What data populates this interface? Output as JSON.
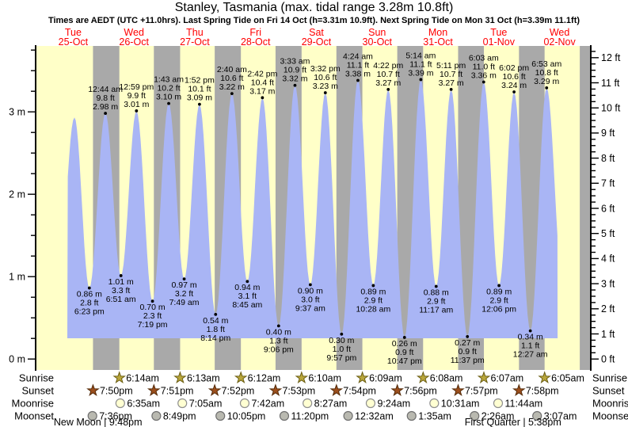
{
  "title": "Stanley, Tasmania (max. tidal range 3.28m 10.8ft)",
  "subtitle": "Times are AEDT (UTC +11.0hrs). Last Spring Tide on Fri 14 Oct (h=3.31m 10.9ft). Next Spring Tide on Mon 31 Oct (h=3.39m 11.1ft)",
  "chart_data": {
    "type": "area",
    "x_axis": {
      "hours_total": 216,
      "days": [
        {
          "dow": "Tue",
          "date": "25-Oct"
        },
        {
          "dow": "Wed",
          "date": "26-Oct"
        },
        {
          "dow": "Thu",
          "date": "27-Oct"
        },
        {
          "dow": "Fri",
          "date": "28-Oct"
        },
        {
          "dow": "Sat",
          "date": "29-Oct"
        },
        {
          "dow": "Sun",
          "date": "30-Oct"
        },
        {
          "dow": "Mon",
          "date": "31-Oct"
        },
        {
          "dow": "Tue",
          "date": "01-Nov"
        },
        {
          "dow": "Wed",
          "date": "02-Nov"
        }
      ]
    },
    "y_axis_left": {
      "unit": "m",
      "major_ticks": [
        0,
        1,
        2,
        3
      ],
      "minor_step": 0.25,
      "minor_max": 3.75
    },
    "y_axis_right": {
      "unit": "ft",
      "major_ticks": [
        0,
        1,
        2,
        3,
        4,
        5,
        6,
        7,
        8,
        9,
        10,
        11,
        12
      ],
      "minor_step": 0.25,
      "minor_max": 12.25
    },
    "extremes": [
      {
        "kind": "low",
        "m": 1.0,
        "t": 6.2,
        "offscreen": true
      },
      {
        "kind": "high",
        "m": 2.93,
        "t": 12.5,
        "unlabeled": true
      },
      {
        "kind": "low",
        "m": 0.86,
        "ft": 2.8,
        "time": "6:23 pm",
        "t": 18.383
      },
      {
        "kind": "high",
        "m": 2.98,
        "ft": 9.8,
        "time": "12:44 am",
        "t": 24.733
      },
      {
        "kind": "low",
        "m": 1.01,
        "ft": 3.3,
        "time": "6:51 am",
        "t": 30.85
      },
      {
        "kind": "high",
        "m": 3.01,
        "ft": 9.9,
        "time": "12:59 pm",
        "t": 36.983
      },
      {
        "kind": "low",
        "m": 0.7,
        "ft": 2.3,
        "time": "7:19 pm",
        "t": 43.317
      },
      {
        "kind": "high",
        "m": 3.1,
        "ft": 10.2,
        "time": "1:43 am",
        "t": 49.717
      },
      {
        "kind": "low",
        "m": 0.97,
        "ft": 3.2,
        "time": "7:49 am",
        "t": 55.817
      },
      {
        "kind": "high",
        "m": 3.09,
        "ft": 10.1,
        "time": "1:52 pm",
        "t": 61.867
      },
      {
        "kind": "low",
        "m": 0.54,
        "ft": 1.8,
        "time": "8:14 pm",
        "t": 68.233
      },
      {
        "kind": "high",
        "m": 3.22,
        "ft": 10.6,
        "time": "2:40 am",
        "t": 74.667
      },
      {
        "kind": "low",
        "m": 0.94,
        "ft": 3.1,
        "time": "8:45 am",
        "t": 80.75
      },
      {
        "kind": "high",
        "m": 3.17,
        "ft": 10.4,
        "time": "2:42 pm",
        "t": 86.7
      },
      {
        "kind": "low",
        "m": 0.4,
        "ft": 1.3,
        "time": "9:06 pm",
        "t": 93.1
      },
      {
        "kind": "high",
        "m": 3.32,
        "ft": 10.9,
        "time": "3:33 am",
        "t": 99.55
      },
      {
        "kind": "low",
        "m": 0.9,
        "ft": 3.0,
        "time": "9:37 am",
        "t": 105.617
      },
      {
        "kind": "high",
        "m": 3.23,
        "ft": 10.6,
        "time": "3:32 pm",
        "t": 111.533
      },
      {
        "kind": "low",
        "m": 0.3,
        "ft": 1.0,
        "time": "9:57 pm",
        "t": 117.95
      },
      {
        "kind": "high",
        "m": 3.38,
        "ft": 11.1,
        "time": "4:24 am",
        "t": 124.4
      },
      {
        "kind": "low",
        "m": 0.89,
        "ft": 2.9,
        "time": "10:28 am",
        "t": 130.467
      },
      {
        "kind": "high",
        "m": 3.27,
        "ft": 10.7,
        "time": "4:22 pm",
        "t": 136.367
      },
      {
        "kind": "low",
        "m": 0.26,
        "ft": 0.9,
        "time": "10:47 pm",
        "t": 142.783
      },
      {
        "kind": "high",
        "m": 3.39,
        "ft": 11.1,
        "time": "5:14 am",
        "t": 149.233
      },
      {
        "kind": "low",
        "m": 0.88,
        "ft": 2.9,
        "time": "11:17 am",
        "t": 155.283
      },
      {
        "kind": "high",
        "m": 3.27,
        "ft": 10.7,
        "time": "5:11 pm",
        "t": 161.183
      },
      {
        "kind": "low",
        "m": 0.27,
        "ft": 0.9,
        "time": "11:37 pm",
        "t": 167.617
      },
      {
        "kind": "high",
        "m": 3.36,
        "ft": 11.0,
        "time": "6:03 am",
        "t": 174.05
      },
      {
        "kind": "low",
        "m": 0.89,
        "ft": 2.9,
        "time": "12:06 pm",
        "t": 180.1
      },
      {
        "kind": "high",
        "m": 3.24,
        "ft": 10.6,
        "time": "6:02 pm",
        "t": 186.033
      },
      {
        "kind": "low",
        "m": 0.34,
        "ft": 1.1,
        "time": "12:27 am",
        "t": 192.45
      },
      {
        "kind": "high",
        "m": 3.29,
        "ft": 10.8,
        "time": "6:53 am",
        "t": 198.883
      },
      {
        "kind": "low",
        "m": 0.9,
        "t": 205.3,
        "offscreen": true
      }
    ],
    "curve_start_h": 9.7,
    "curve_end_h": 203.2,
    "night_bands_h": [
      [
        19.83,
        30.23
      ],
      [
        43.85,
        54.22
      ],
      [
        67.87,
        78.2
      ],
      [
        91.88,
        102.17
      ],
      [
        115.9,
        126.15
      ],
      [
        139.93,
        150.13
      ],
      [
        163.95,
        174.12
      ],
      [
        187.97,
        198.08
      ],
      [
        211.97,
        216
      ]
    ],
    "colors": {
      "day": "#ffffc8",
      "night": "#a9a9a9",
      "water": "#a9b5f5",
      "day_label": "#ff0000",
      "text": "#000000",
      "sunrise_star": "#b9a63b",
      "sunrise_star_edge": "#6b5e14",
      "sunset_star": "#9c4f1d",
      "sunset_star_edge": "#542a08",
      "moonrise_fill": "#ffffd2",
      "moonrise_edge": "#8f8f8f",
      "moonset_fill": "#b9b9b0",
      "moonset_edge": "#6f6f6f"
    }
  },
  "astronomy": {
    "sunrise_label": "Sunrise",
    "sunset_label": "Sunset",
    "moonrise_label": "Moonrise",
    "moonset_label": "Moonset",
    "sunrise": [
      {
        "time": "6:14am",
        "t": 30.233
      },
      {
        "time": "6:13am",
        "t": 54.217
      },
      {
        "time": "6:12am",
        "t": 78.2
      },
      {
        "time": "6:10am",
        "t": 102.167
      },
      {
        "time": "6:09am",
        "t": 126.15
      },
      {
        "time": "6:08am",
        "t": 150.133
      },
      {
        "time": "6:07am",
        "t": 174.117
      },
      {
        "time": "6:05am",
        "t": 198.083
      }
    ],
    "sunset": [
      {
        "time": "7:50pm",
        "t": 19.833
      },
      {
        "time": "7:51pm",
        "t": 43.85
      },
      {
        "time": "7:52pm",
        "t": 67.867
      },
      {
        "time": "7:53pm",
        "t": 91.883
      },
      {
        "time": "7:54pm",
        "t": 115.9
      },
      {
        "time": "7:56pm",
        "t": 139.933
      },
      {
        "time": "7:57pm",
        "t": 163.95
      },
      {
        "time": "7:58pm",
        "t": 187.967
      }
    ],
    "moonrise": [
      {
        "time": "6:35am",
        "t": 30.583
      },
      {
        "time": "7:05am",
        "t": 55.083
      },
      {
        "time": "7:42am",
        "t": 79.7
      },
      {
        "time": "8:27am",
        "t": 104.45
      },
      {
        "time": "9:24am",
        "t": 129.4
      },
      {
        "time": "10:31am",
        "t": 154.517
      },
      {
        "time": "11:44am",
        "t": 179.733
      }
    ],
    "moonset": [
      {
        "time": "7:36pm",
        "t": 19.6
      },
      {
        "time": "8:49pm",
        "t": 44.817
      },
      {
        "time": "10:05pm",
        "t": 70.083
      },
      {
        "time": "11:20pm",
        "t": 95.333
      },
      {
        "time": "12:32am",
        "t": 120.533
      },
      {
        "time": "1:35am",
        "t": 145.583
      },
      {
        "time": "2:26am",
        "t": 170.433
      },
      {
        "time": "3:07am",
        "t": 195.117
      }
    ],
    "phases": [
      {
        "label": "New Moon | 9:48pm",
        "t": 21.8
      },
      {
        "label": "First Quarter | 5:38pm",
        "t": 185.6
      }
    ]
  }
}
